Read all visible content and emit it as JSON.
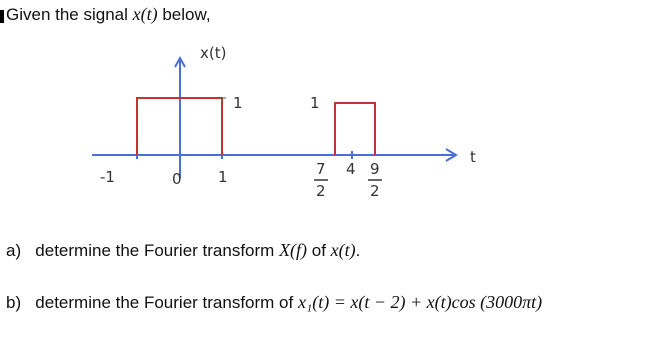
{
  "intro": [
    "Given the signal ",
    "x(t)",
    " below,"
  ],
  "diagram": {
    "y_axis_label": "x(t)",
    "x_axis_label": "t",
    "pulse_heights": [
      "1",
      "1"
    ],
    "ticks": [
      "-1",
      "0",
      "1"
    ],
    "fraction_ticks": [
      {
        "numerator": "7",
        "denominator": "2"
      },
      {
        "numerator": "9",
        "denominator": "2"
      }
    ],
    "middle_tick": "4"
  },
  "questions": [
    {
      "label": "a)",
      "parts": [
        "determine the Fourier transform ",
        "X(f)",
        " of ",
        "x(t)",
        "."
      ]
    },
    {
      "label": "b)",
      "parts": [
        "determine the Fourier transform of ",
        "x₁(t) = x(t − 2) + x(t)cos (3000πt)"
      ]
    }
  ]
}
